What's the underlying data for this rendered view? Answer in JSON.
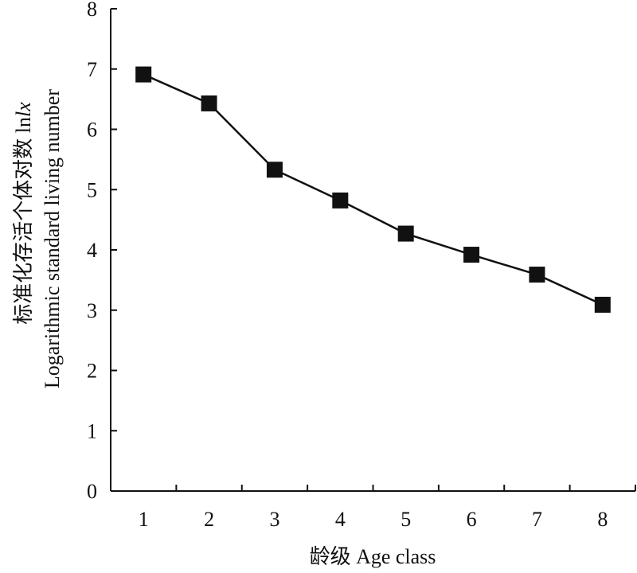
{
  "chart_data": {
    "type": "line",
    "xlabel": "龄级 Age class",
    "ylabel_cn": "标准化存活个体对数 ln",
    "ylabel_cn_italic": "lx",
    "ylabel_en": "Logarithmic  standard  living number",
    "x": [
      1,
      2,
      3,
      4,
      5,
      6,
      7,
      8
    ],
    "x_tick_labels": [
      "1",
      "2",
      "3",
      "4",
      "5",
      "6",
      "7",
      "8"
    ],
    "ylim": [
      0,
      8
    ],
    "y_ticks": [
      0,
      1,
      2,
      3,
      4,
      5,
      6,
      7,
      8
    ],
    "y_tick_labels": [
      "0",
      "1",
      "2",
      "3",
      "4",
      "5",
      "6",
      "7",
      "8"
    ],
    "series": [
      {
        "values": [
          6.91,
          6.43,
          5.33,
          4.82,
          4.27,
          3.92,
          3.59,
          3.09
        ],
        "marker": "square",
        "color": "#111111"
      }
    ],
    "grid": false,
    "legend": "none"
  }
}
